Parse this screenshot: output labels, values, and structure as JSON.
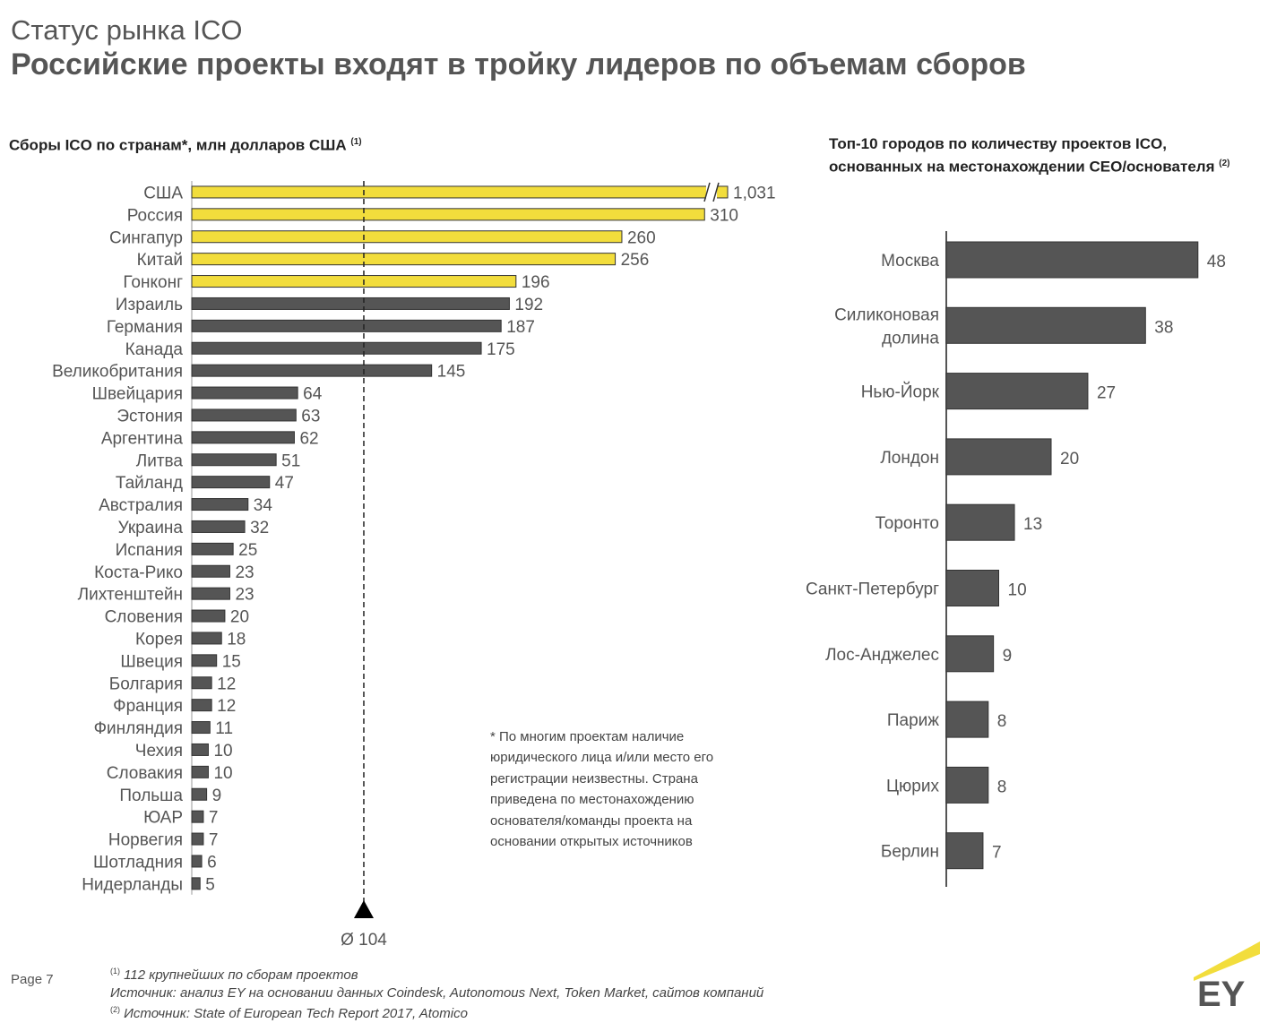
{
  "header": {
    "subtitle": "Статус рынка ICO",
    "title": "Российские проекты входят в тройку лидеров по объемам сборов"
  },
  "colors": {
    "highlight": "#f2dd3c",
    "bar": "#555555",
    "text": "#444444"
  },
  "chart_data": [
    {
      "type": "bar",
      "orientation": "horizontal",
      "title": "Сборы ICO по странам*, млн долларов США",
      "title_note": "(1)",
      "categories": [
        "США",
        "Россия",
        "Сингапур",
        "Китай",
        "Гонконг",
        "Израиль",
        "Германия",
        "Канада",
        "Великобритания",
        "Швейцария",
        "Эстония",
        "Аргентина",
        "Литва",
        "Тайланд",
        "Австралия",
        "Украина",
        "Испания",
        "Коста-Рико",
        "Лихтенштейн",
        "Словения",
        "Корея",
        "Швеция",
        "Болгария",
        "Франция",
        "Финляндия",
        "Чехия",
        "Словакия",
        "Польша",
        "ЮАР",
        "Норвегия",
        "Шотладния",
        "Нидерланды"
      ],
      "values": [
        1031,
        310,
        260,
        256,
        196,
        192,
        187,
        175,
        145,
        64,
        63,
        62,
        51,
        47,
        34,
        32,
        25,
        23,
        23,
        20,
        18,
        15,
        12,
        12,
        11,
        10,
        10,
        9,
        7,
        7,
        6,
        5
      ],
      "value_labels": [
        "1,031",
        "310",
        "260",
        "256",
        "196",
        "192",
        "187",
        "175",
        "145",
        "64",
        "63",
        "62",
        "51",
        "47",
        "34",
        "32",
        "25",
        "23",
        "23",
        "20",
        "18",
        "15",
        "12",
        "12",
        "11",
        "10",
        "10",
        "9",
        "7",
        "7",
        "6",
        "5"
      ],
      "highlighted_count": 5,
      "broken_axis_first_bar": true,
      "average_value": 104,
      "average_label": "Ø 104"
    },
    {
      "type": "bar",
      "orientation": "horizontal",
      "title": "Топ-10 городов по количеству проектов ICO, основанных на местонахождении CEO/основателя",
      "title_note": "(2)",
      "categories": [
        "Москва",
        "Силиконовая долина",
        "Нью-Йорк",
        "Лондон",
        "Торонто",
        "Санкт-Петербург",
        "Лос-Анджелес",
        "Париж",
        "Цюрих",
        "Берлин"
      ],
      "values": [
        48,
        38,
        27,
        20,
        13,
        10,
        9,
        8,
        8,
        7
      ]
    }
  ],
  "note": "* По многим проектам наличие юридического лица и/или место его регистрации неизвестны. Страна приведена по местонахождению основателя/команды проекта на основании открытых источников",
  "footer": {
    "page": "Page 7",
    "note1_mark": "(1)",
    "note1": "112 крупнейших по сборам проектов",
    "source1": "Источник: анализ EY на основании данных Coindesk, Autonomous Next, Token Market, сайтов компаний",
    "note2_mark": "(2)",
    "source2": "Источник: State of European Tech Report 2017, Atomico"
  },
  "logo": "EY"
}
